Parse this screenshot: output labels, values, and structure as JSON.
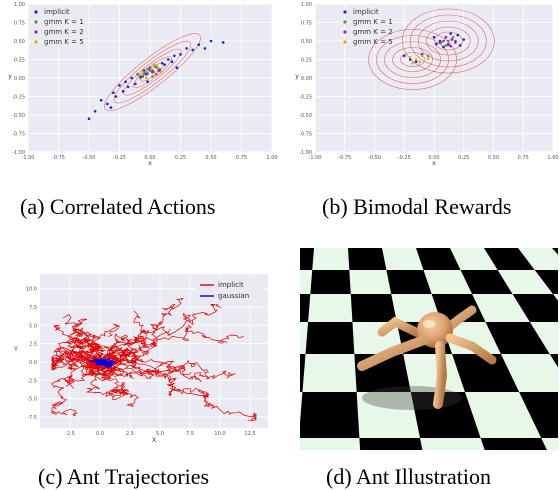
{
  "panels": [
    {
      "caption_label": "(a)",
      "caption_title": "Correlated Actions",
      "chart_data": {
        "type": "scatter",
        "xlabel": "x",
        "ylabel": "y",
        "xticks": [
          "-1.00",
          "-0.75",
          "-0.50",
          "-0.25",
          "0.00",
          "0.25",
          "0.50",
          "0.75",
          "1.00"
        ],
        "yticks": [
          "1.00",
          "0.75",
          "0.50",
          "0.25",
          "0.00",
          "-0.25",
          "-0.50",
          "-0.75",
          "-1.00"
        ],
        "xlim": [
          -1,
          1
        ],
        "ylim": [
          -1,
          1
        ],
        "grid": true,
        "legend_position": "top-left",
        "series": [
          {
            "name": "implicit",
            "color": "#1f1fe0",
            "points": [
              [
                -0.45,
                -0.45
              ],
              [
                -0.4,
                -0.3
              ],
              [
                -0.35,
                -0.35
              ],
              [
                -0.3,
                -0.2
              ],
              [
                -0.28,
                -0.25
              ],
              [
                -0.25,
                -0.1
              ],
              [
                -0.22,
                -0.18
              ],
              [
                -0.2,
                -0.05
              ],
              [
                -0.18,
                -0.12
              ],
              [
                -0.15,
                0.0
              ],
              [
                -0.12,
                -0.08
              ],
              [
                -0.1,
                0.05
              ],
              [
                -0.08,
                0.02
              ],
              [
                -0.05,
                0.1
              ],
              [
                -0.03,
                0.05
              ],
              [
                0.0,
                0.12
              ],
              [
                0.02,
                0.08
              ],
              [
                0.05,
                0.15
              ],
              [
                0.08,
                0.1
              ],
              [
                0.1,
                0.2
              ],
              [
                0.12,
                0.18
              ],
              [
                0.15,
                0.25
              ],
              [
                0.18,
                0.22
              ],
              [
                0.2,
                0.3
              ],
              [
                0.25,
                0.32
              ],
              [
                0.3,
                0.4
              ],
              [
                0.35,
                0.38
              ],
              [
                0.4,
                0.45
              ],
              [
                0.45,
                0.4
              ],
              [
                0.5,
                0.5
              ],
              [
                -0.5,
                -0.55
              ],
              [
                -0.32,
                -0.4
              ],
              [
                0.22,
                0.14
              ],
              [
                -0.02,
                -0.05
              ],
              [
                0.6,
                0.48
              ]
            ]
          },
          {
            "name": "gmm K = 1",
            "color": "#5f8f3f",
            "points": [
              [
                -0.05,
                0.05
              ],
              [
                0.0,
                0.1
              ],
              [
                0.03,
                0.08
              ],
              [
                -0.02,
                0.12
              ],
              [
                0.06,
                0.14
              ],
              [
                0.02,
                0.02
              ],
              [
                -0.08,
                0.0
              ],
              [
                0.08,
                0.12
              ],
              [
                0.04,
                0.16
              ],
              [
                -0.04,
                0.08
              ]
            ]
          },
          {
            "name": "gmm K = 2",
            "color": "#a020c0",
            "points": [
              [
                -0.02,
                0.06
              ],
              [
                0.02,
                0.1
              ],
              [
                0.05,
                0.05
              ],
              [
                -0.06,
                0.02
              ],
              [
                0.0,
                0.14
              ],
              [
                0.07,
                0.1
              ]
            ]
          },
          {
            "name": "gmm K = 5",
            "color": "#d4b400",
            "points": [
              [
                -0.06,
                0.08
              ],
              [
                0.01,
                0.12
              ],
              [
                0.04,
                0.06
              ],
              [
                -0.03,
                0.0
              ],
              [
                0.06,
                0.16
              ],
              [
                0.09,
                0.08
              ],
              [
                -0.09,
                0.04
              ],
              [
                0.03,
                0.18
              ]
            ]
          }
        ]
      }
    },
    {
      "caption_label": "(b)",
      "caption_title": "Bimodal Rewards",
      "chart_data": {
        "type": "scatter",
        "xlabel": "x",
        "ylabel": "y",
        "xticks": [
          "-1.00",
          "-0.75",
          "-0.50",
          "-0.25",
          "0.00",
          "0.25",
          "0.50",
          "0.75",
          "1.00"
        ],
        "yticks": [
          "1.00",
          "0.75",
          "0.50",
          "0.25",
          "0.00",
          "-0.25",
          "-0.50",
          "-0.75",
          "-1.00"
        ],
        "xlim": [
          -1,
          1
        ],
        "ylim": [
          -1,
          1
        ],
        "grid": true,
        "legend_position": "top-right",
        "series": [
          {
            "name": "implicit",
            "color": "#1f1fe0",
            "points": [
              [
                0.05,
                0.5
              ],
              [
                0.1,
                0.55
              ],
              [
                0.12,
                0.45
              ],
              [
                0.15,
                0.52
              ],
              [
                0.18,
                0.48
              ],
              [
                0.08,
                0.42
              ],
              [
                0.2,
                0.58
              ],
              [
                0.02,
                0.46
              ],
              [
                0.14,
                0.6
              ],
              [
                0.22,
                0.44
              ],
              [
                -0.25,
                0.3
              ],
              [
                -0.2,
                0.25
              ],
              [
                -0.15,
                0.22
              ],
              [
                -0.1,
                0.32
              ],
              [
                0.25,
                0.52
              ],
              [
                0.0,
                0.55
              ]
            ]
          },
          {
            "name": "gmm K = 1",
            "color": "#5f8f3f",
            "points": [
              [
                0.06,
                0.48
              ],
              [
                0.12,
                0.5
              ],
              [
                0.1,
                0.44
              ],
              [
                -0.05,
                0.3
              ],
              [
                0.16,
                0.55
              ]
            ]
          },
          {
            "name": "gmm K = 2",
            "color": "#a020c0",
            "points": [
              [
                0.08,
                0.5
              ],
              [
                0.12,
                0.46
              ],
              [
                0.15,
                0.52
              ],
              [
                0.1,
                0.55
              ],
              [
                0.18,
                0.5
              ],
              [
                0.05,
                0.48
              ],
              [
                0.14,
                0.43
              ]
            ]
          },
          {
            "name": "gmm K = 5",
            "color": "#d4b400",
            "points": [
              [
                -0.2,
                0.28
              ],
              [
                -0.15,
                0.25
              ],
              [
                -0.1,
                0.3
              ],
              [
                -0.18,
                0.2
              ],
              [
                -0.12,
                0.22
              ],
              [
                -0.05,
                0.26
              ]
            ]
          }
        ]
      }
    },
    {
      "caption_label": "(c)",
      "caption_title": "Ant Trajectories",
      "chart_data": {
        "type": "line",
        "xlabel": "X",
        "ylabel": "Y",
        "xticks": [
          "-2.5",
          "0.0",
          "2.5",
          "5.0",
          "7.5",
          "10.0",
          "12.5"
        ],
        "yticks": [
          "10.0",
          "7.5",
          "5.0",
          "2.5",
          "0.0",
          "-2.5",
          "-5.0",
          "-7.5"
        ],
        "xlim": [
          -5,
          14
        ],
        "ylim": [
          -9,
          12
        ],
        "grid": true,
        "legend_position": "top-right",
        "series": [
          {
            "name": "implicit",
            "color": "#e00000"
          },
          {
            "name": "gaussian",
            "color": "#0000e0"
          }
        ]
      }
    },
    {
      "caption_label": "(d)",
      "caption_title": "Ant Illustration"
    }
  ]
}
